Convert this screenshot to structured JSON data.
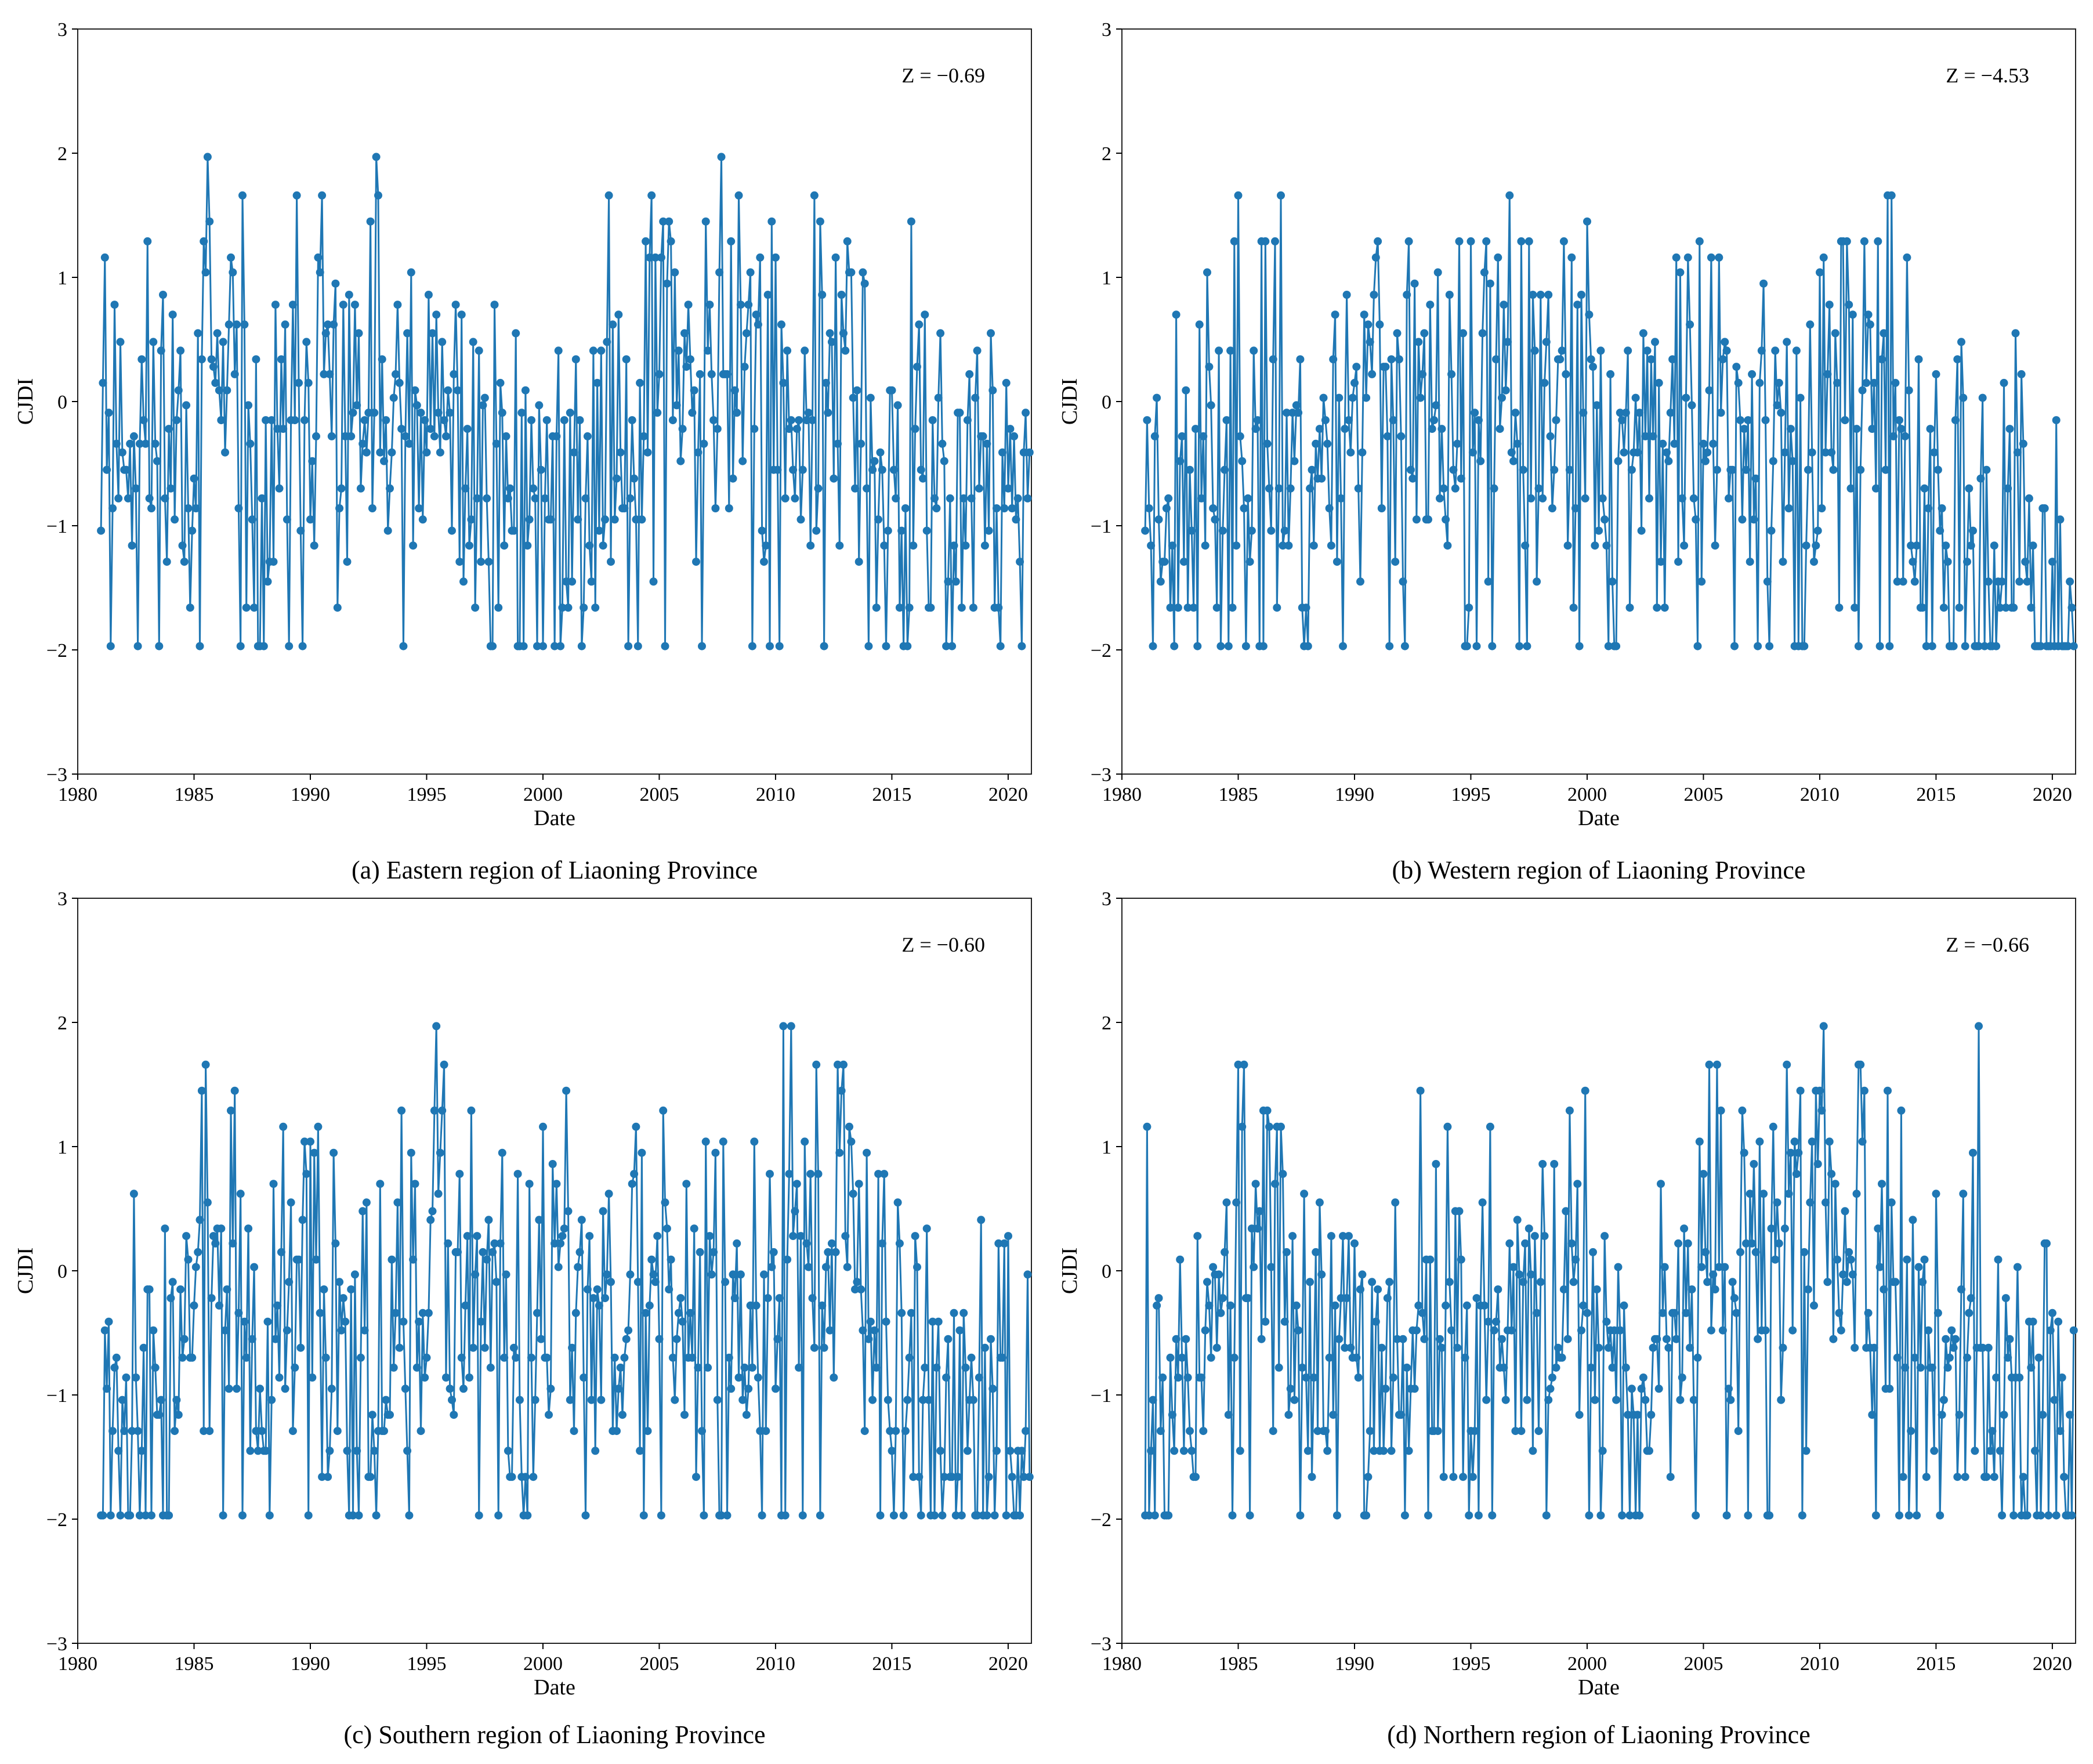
{
  "figure": {
    "panels": [
      {
        "caption": "(a) Eastern region of Liaoning Province",
        "annotation": "Z = −0.69",
        "seed": 11,
        "profile": [
          [
            1981,
            -0.1
          ],
          [
            1984,
            -0.3
          ],
          [
            1986,
            0.1
          ],
          [
            1988,
            -0.9
          ],
          [
            1990,
            0.1
          ],
          [
            1993,
            -0.3
          ],
          [
            1996,
            -0.3
          ],
          [
            1999,
            -0.8
          ],
          [
            2001,
            -1.0
          ],
          [
            2003,
            -0.2
          ],
          [
            2005,
            0.4
          ],
          [
            2008,
            0.3
          ],
          [
            2010,
            0.0
          ],
          [
            2013,
            0.1
          ],
          [
            2015,
            -0.9
          ],
          [
            2018,
            -0.7
          ],
          [
            2021,
            -0.6
          ]
        ]
      },
      {
        "caption": "(b) Western region of Liaoning Province",
        "annotation": "Z = −4.53",
        "seed": 23,
        "profile": [
          [
            1981,
            -0.6
          ],
          [
            1984,
            -0.6
          ],
          [
            1986,
            0.2
          ],
          [
            1988,
            -0.7
          ],
          [
            1990,
            0.2
          ],
          [
            1993,
            -0.4
          ],
          [
            1996,
            0.2
          ],
          [
            1999,
            -0.3
          ],
          [
            2001,
            -0.4
          ],
          [
            2004,
            -0.2
          ],
          [
            2007,
            -0.2
          ],
          [
            2010,
            -0.3
          ],
          [
            2012,
            0.4
          ],
          [
            2014,
            -1.0
          ],
          [
            2017,
            -1.3
          ],
          [
            2021,
            -1.6
          ]
        ]
      },
      {
        "caption": "(c) Southern region of Liaoning Province",
        "annotation": "Z = −0.60",
        "seed": 37,
        "profile": [
          [
            1981,
            -0.6
          ],
          [
            1983,
            -1.1
          ],
          [
            1986,
            0.2
          ],
          [
            1988,
            -0.9
          ],
          [
            1990,
            -0.1
          ],
          [
            1993,
            -0.8
          ],
          [
            1996,
            0.0
          ],
          [
            1999,
            -0.8
          ],
          [
            2001,
            -0.3
          ],
          [
            2004,
            -0.1
          ],
          [
            2007,
            -0.2
          ],
          [
            2009,
            -0.3
          ],
          [
            2011,
            0.6
          ],
          [
            2013,
            0.3
          ],
          [
            2015,
            -0.9
          ],
          [
            2018,
            -1.2
          ],
          [
            2021,
            -1.2
          ]
        ]
      },
      {
        "caption": "(d) Northern region of Liaoning Province",
        "annotation": "Z = −0.66",
        "seed": 53,
        "profile": [
          [
            1981,
            -0.4
          ],
          [
            1983,
            -0.9
          ],
          [
            1986,
            0.4
          ],
          [
            1988,
            -0.6
          ],
          [
            1990,
            -0.8
          ],
          [
            1993,
            -0.4
          ],
          [
            1996,
            -0.6
          ],
          [
            1999,
            -0.3
          ],
          [
            2002,
            -0.8
          ],
          [
            2005,
            0.1
          ],
          [
            2008,
            -0.2
          ],
          [
            2010,
            0.6
          ],
          [
            2012,
            0.0
          ],
          [
            2014,
            -0.6
          ],
          [
            2016,
            -0.9
          ],
          [
            2018,
            -1.1
          ],
          [
            2021,
            -1.0
          ]
        ]
      }
    ]
  },
  "chart_data": [
    {
      "type": "line",
      "title": "(a) Eastern region of Liaoning Province",
      "xlabel": "Date",
      "ylabel": "CJDI",
      "xlim": [
        1980,
        2021
      ],
      "ylim": [
        -3,
        3
      ],
      "xticks": [
        "1980",
        "1985",
        "1990",
        "1995",
        "2000",
        "2005",
        "2010",
        "2015",
        "2020"
      ],
      "yticks": [
        "−3",
        "−2",
        "−1",
        "0",
        "1",
        "2",
        "3"
      ],
      "series": [
        {
          "name": "CJDI",
          "x_start": 1981.0,
          "x_end": 2020.92,
          "points": 480,
          "min": -1.97,
          "max": 1.97,
          "peaks": [
            [
              1981.2,
              1.16
            ],
            [
              1985.6,
              1.97
            ],
            [
              1990.5,
              1.66
            ],
            [
              1992.8,
              1.97
            ],
            [
              2005.2,
              1.45
            ],
            [
              2007.0,
              1.45
            ],
            [
              2007.7,
              1.97
            ],
            [
              2010.0,
              1.16
            ],
            [
              2012.6,
              1.16
            ],
            [
              2015.8,
              1.45
            ]
          ]
        }
      ],
      "annotation": "Z = −0.69"
    },
    {
      "type": "line",
      "title": "(b) Western region of Liaoning Province",
      "xlabel": "Date",
      "ylabel": "CJDI",
      "xlim": [
        1980,
        2021
      ],
      "ylim": [
        -3,
        3
      ],
      "xticks": [
        "1980",
        "1985",
        "1990",
        "1995",
        "2000",
        "2005",
        "2010",
        "2015",
        "2020"
      ],
      "yticks": [
        "−3",
        "−2",
        "−1",
        "0",
        "1",
        "2",
        "3"
      ],
      "series": [
        {
          "name": "CJDI",
          "x_start": 1981.0,
          "x_end": 2020.92,
          "points": 480,
          "min": -1.97,
          "max": 1.66,
          "peaks": [
            [
              1985.0,
              1.66
            ],
            [
              1986.8,
              1.66
            ],
            [
              1996.7,
              1.66
            ],
            [
              2000.0,
              1.45
            ],
            [
              2003.8,
              1.16
            ],
            [
              2010.2,
              1.16
            ],
            [
              2012.9,
              1.66
            ],
            [
              2013.1,
              1.66
            ]
          ]
        }
      ],
      "annotation": "Z = −4.53"
    },
    {
      "type": "line",
      "title": "(c) Southern region of Liaoning Province",
      "xlabel": "Date",
      "ylabel": "CJDI",
      "xlim": [
        1980,
        2021
      ],
      "ylim": [
        -3,
        3
      ],
      "xticks": [
        "1980",
        "1985",
        "1990",
        "1995",
        "2000",
        "2005",
        "2010",
        "2015",
        "2020"
      ],
      "yticks": [
        "−3",
        "−2",
        "−1",
        "0",
        "1",
        "2",
        "3"
      ],
      "series": [
        {
          "name": "CJDI",
          "x_start": 1981.0,
          "x_end": 2020.92,
          "points": 480,
          "min": -1.97,
          "max": 1.97,
          "peaks": [
            [
              1986.6,
              1.29
            ],
            [
              1990.3,
              1.16
            ],
            [
              1995.4,
              1.97
            ],
            [
              1996.9,
              1.29
            ],
            [
              2005.2,
              1.29
            ],
            [
              2010.3,
              1.97
            ],
            [
              2010.7,
              1.97
            ],
            [
              2012.8,
              1.45
            ]
          ]
        }
      ],
      "annotation": "Z = −0.60"
    },
    {
      "type": "line",
      "title": "(d) Northern region of Liaoning Province",
      "xlabel": "Date",
      "ylabel": "CJDI",
      "xlim": [
        1980,
        2021
      ],
      "ylim": [
        -3,
        3
      ],
      "xticks": [
        "1980",
        "1985",
        "1990",
        "1995",
        "2000",
        "2005",
        "2010",
        "2015",
        "2020"
      ],
      "yticks": [
        "−3",
        "−2",
        "−1",
        "0",
        "1",
        "2",
        "3"
      ],
      "series": [
        {
          "name": "CJDI",
          "x_start": 1981.0,
          "x_end": 2020.92,
          "points": 480,
          "min": -1.97,
          "max": 1.97,
          "peaks": [
            [
              1981.1,
              1.16
            ],
            [
              1986.3,
              1.16
            ],
            [
              1999.9,
              1.45
            ],
            [
              2008.6,
              1.66
            ],
            [
              2010.2,
              1.97
            ],
            [
              2012.9,
              1.45
            ],
            [
              2016.8,
              1.97
            ]
          ]
        }
      ],
      "annotation": "Z = −0.66"
    }
  ]
}
